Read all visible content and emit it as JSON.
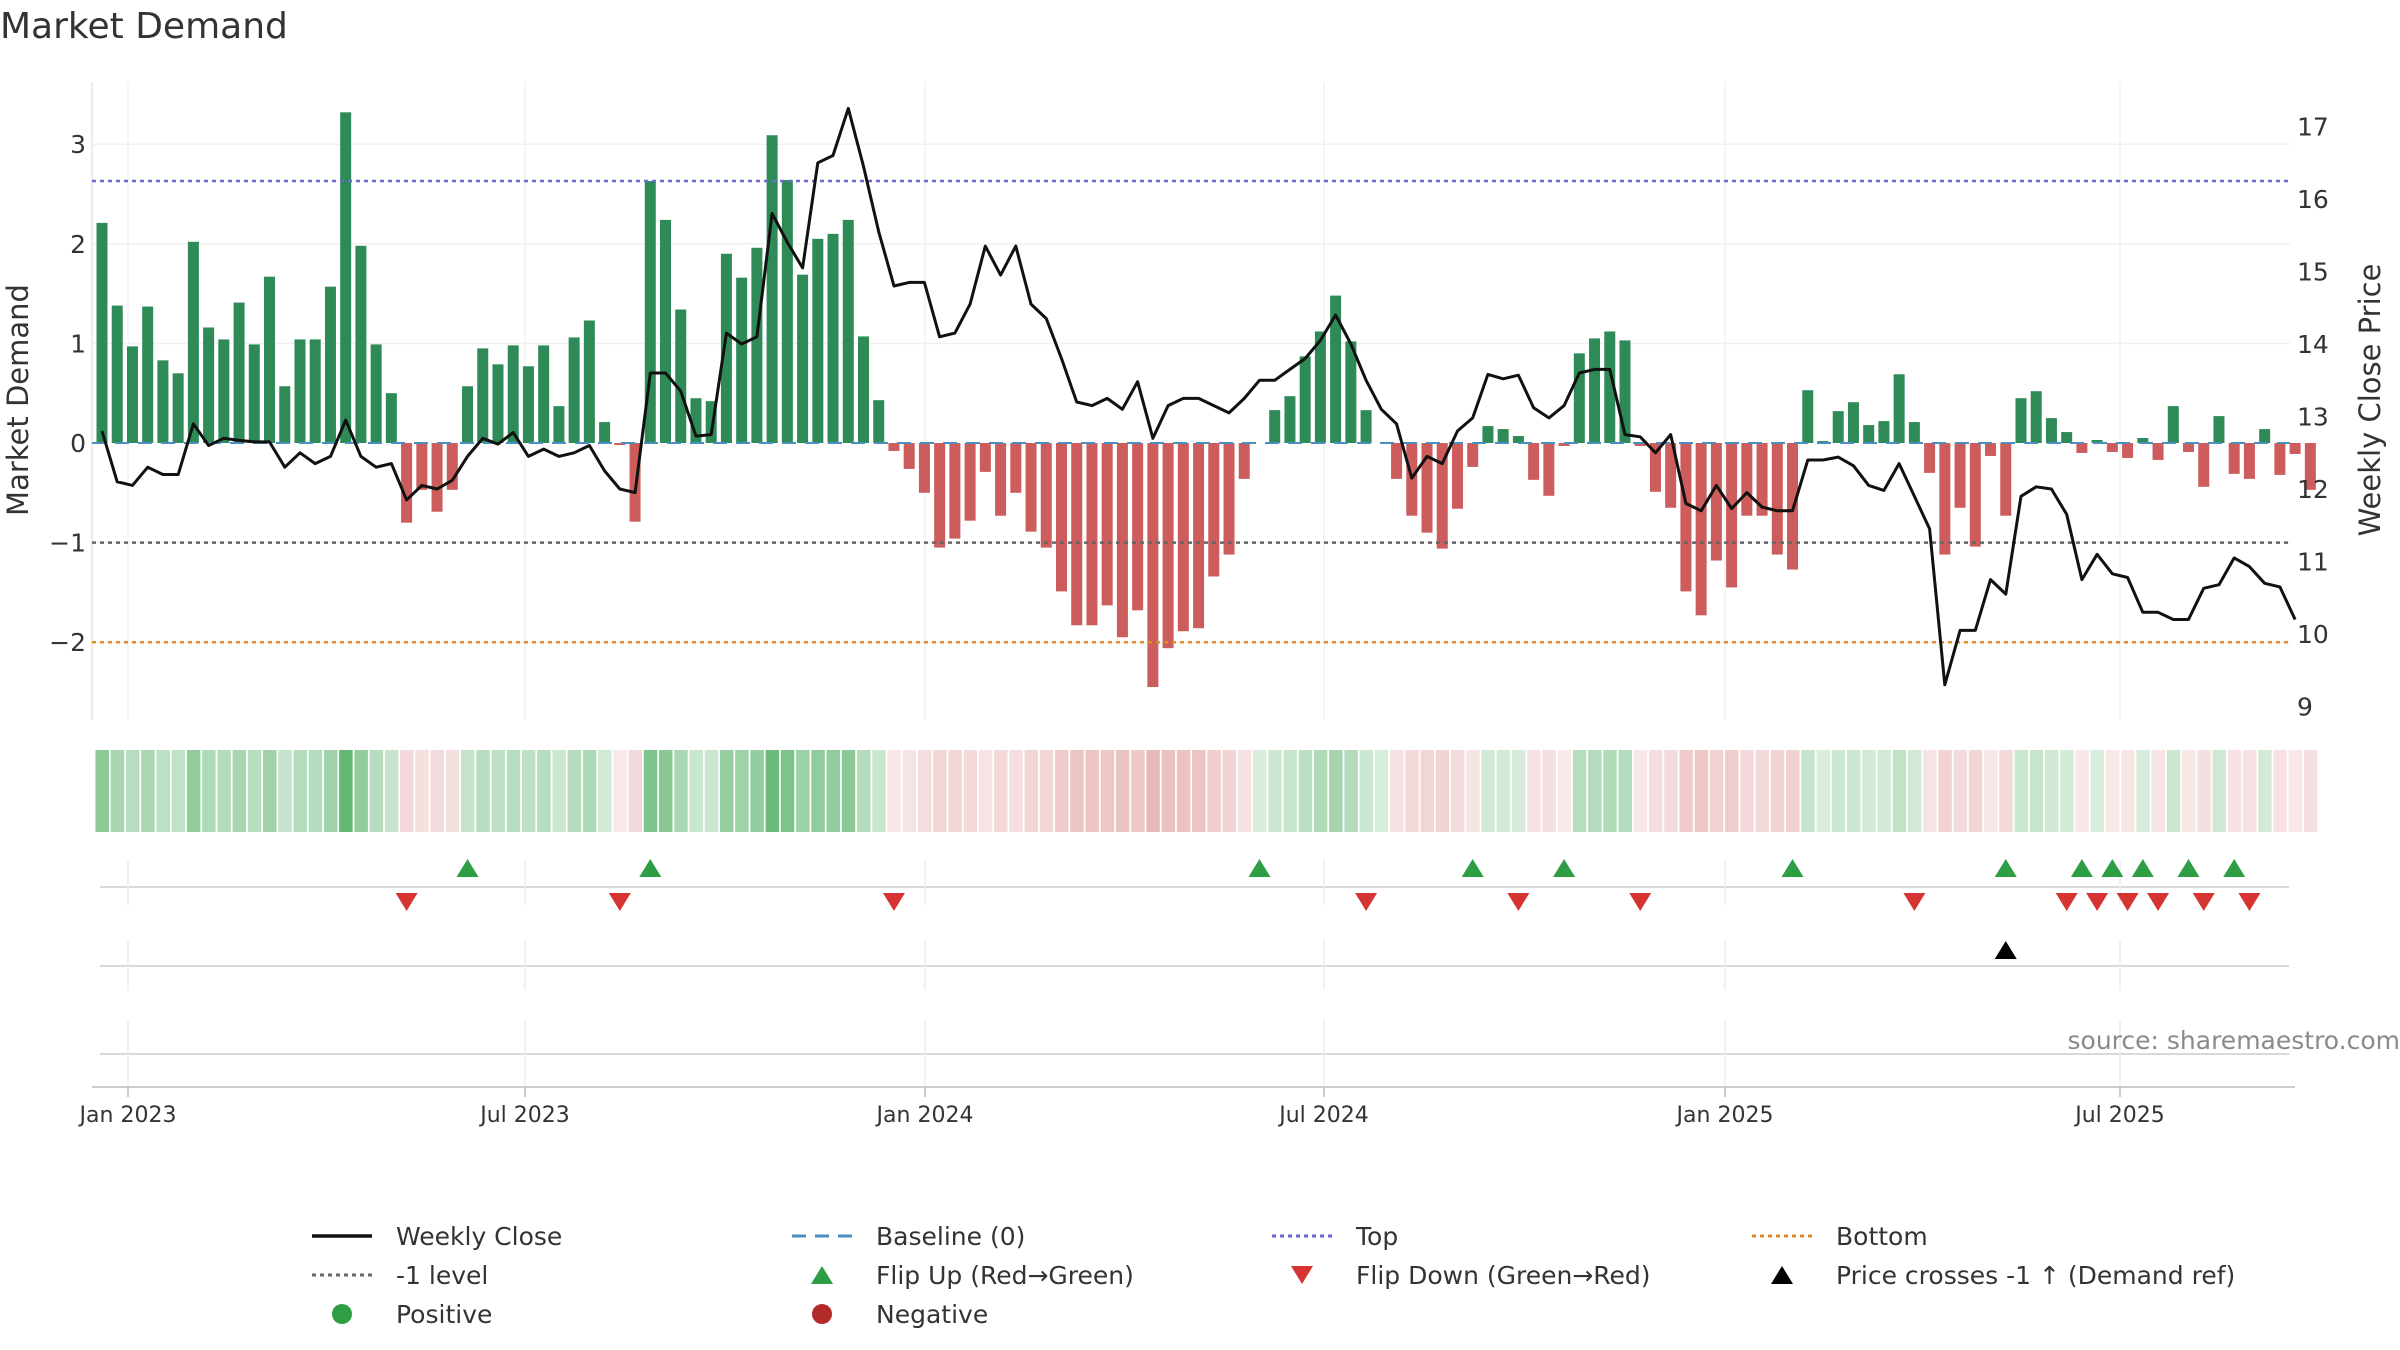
{
  "chart_data": {
    "type": "bar",
    "title": "Market Demand",
    "ylabel_left": "Market Demand",
    "ylabel_right": "Weekly Close Price",
    "yticks_left": [
      "3",
      "2",
      "1",
      "0",
      "−1",
      "−2"
    ],
    "yticks_right": [
      "17",
      "16",
      "15",
      "14",
      "13",
      "12",
      "11",
      "10",
      "9"
    ],
    "ylim_left": [
      -2.7,
      3.5
    ],
    "ylim_right": [
      8.8,
      17.4
    ],
    "x_ticks": [
      "Jan 2023",
      "Jul 2023",
      "Jan 2024",
      "Jul 2024",
      "Jan 2025",
      "Jul 2025"
    ],
    "reference_lines": {
      "top": 2.63,
      "minus_one": -1.0,
      "bottom": -2.0,
      "baseline": 0
    },
    "source": "source: sharemaestro.com",
    "demand": [
      2.21,
      1.38,
      0.97,
      1.37,
      0.83,
      0.7,
      2.02,
      1.16,
      1.04,
      1.41,
      0.99,
      1.67,
      0.57,
      1.04,
      1.04,
      1.57,
      3.32,
      1.98,
      0.99,
      0.5,
      -0.8,
      -0.47,
      -0.69,
      -0.47,
      0.57,
      0.95,
      0.79,
      0.98,
      0.77,
      0.98,
      0.37,
      1.06,
      1.23,
      0.21,
      -0.02,
      -0.79,
      2.63,
      2.24,
      1.34,
      0.45,
      0.42,
      1.9,
      1.66,
      1.96,
      3.09,
      2.64,
      1.69,
      2.05,
      2.1,
      2.24,
      1.07,
      0.43,
      -0.08,
      -0.26,
      -0.5,
      -1.05,
      -0.96,
      -0.78,
      -0.29,
      -0.73,
      -0.5,
      -0.89,
      -1.05,
      -1.49,
      -1.83,
      -1.83,
      -1.63,
      -1.95,
      -1.68,
      -2.45,
      -2.06,
      -1.89,
      -1.86,
      -1.34,
      -1.12,
      -0.36,
      0.0,
      0.33,
      0.47,
      0.87,
      1.12,
      1.48,
      1.02,
      0.33,
      0.0,
      -0.36,
      -0.73,
      -0.9,
      -1.06,
      -0.66,
      -0.24,
      0.17,
      0.14,
      0.07,
      -0.37,
      -0.53,
      -0.03,
      0.9,
      1.05,
      1.12,
      1.03,
      -0.03,
      -0.49,
      -0.65,
      -1.49,
      -1.73,
      -1.18,
      -1.45,
      -0.73,
      -0.73,
      -1.12,
      -1.27,
      0.53,
      0.02,
      0.32,
      0.41,
      0.18,
      0.22,
      0.69,
      0.21,
      -0.3,
      -1.12,
      -0.65,
      -1.04,
      -0.13,
      -0.73,
      0.45,
      0.52,
      0.25,
      0.11,
      -0.1,
      0.03,
      -0.09,
      -0.15,
      0.05,
      -0.17,
      0.37,
      -0.09,
      -0.44,
      0.27,
      -0.31,
      -0.36,
      0.14,
      -0.32,
      -0.11,
      -0.47
    ],
    "weekly_close": [
      12.8,
      12.1,
      12.05,
      12.3,
      12.2,
      12.2,
      12.9,
      12.6,
      12.7,
      12.67,
      12.65,
      12.65,
      12.3,
      12.5,
      12.35,
      12.45,
      12.95,
      12.45,
      12.3,
      12.35,
      11.85,
      12.05,
      12.0,
      12.12,
      12.45,
      12.7,
      12.62,
      12.78,
      12.45,
      12.55,
      12.45,
      12.5,
      12.6,
      12.25,
      12.0,
      11.95,
      13.6,
      13.6,
      13.35,
      12.73,
      12.75,
      14.15,
      14.0,
      14.1,
      15.8,
      15.4,
      15.05,
      16.5,
      16.6,
      17.25,
      16.45,
      15.55,
      14.8,
      14.85,
      14.85,
      14.1,
      14.15,
      14.55,
      15.35,
      14.95,
      15.35,
      14.55,
      14.35,
      13.8,
      13.2,
      13.15,
      13.25,
      13.1,
      13.48,
      12.7,
      13.15,
      13.25,
      13.25,
      13.15,
      13.05,
      13.25,
      13.5,
      13.5,
      13.65,
      13.8,
      14.05,
      14.4,
      14.0,
      13.5,
      13.1,
      12.9,
      12.15,
      12.45,
      12.35,
      12.8,
      12.98,
      13.58,
      13.52,
      13.57,
      13.12,
      12.98,
      13.15,
      13.6,
      13.65,
      13.65,
      12.75,
      12.72,
      12.5,
      12.75,
      11.8,
      11.7,
      12.05,
      11.73,
      11.95,
      11.75,
      11.7,
      11.7,
      12.4,
      12.4,
      12.44,
      12.32,
      12.05,
      11.98,
      12.35,
      11.9,
      11.45,
      9.3,
      10.05,
      10.05,
      10.75,
      10.55,
      11.9,
      12.03,
      12.0,
      11.65,
      10.75,
      11.1,
      10.83,
      10.78,
      10.3,
      10.3,
      10.2,
      10.2,
      10.63,
      10.68,
      11.05,
      10.93,
      10.7,
      10.65,
      10.2
    ],
    "flip_up_index": [
      24,
      36,
      76,
      90,
      96,
      111,
      125,
      130,
      132,
      134,
      137,
      140
    ],
    "flip_down_index": [
      20,
      34,
      52,
      83,
      93,
      101,
      119,
      129,
      131,
      133,
      135,
      138,
      141
    ],
    "cross_up_index": [
      125
    ],
    "legend": [
      {
        "label": "Weekly Close",
        "kind": "line",
        "color": "#111111"
      },
      {
        "label": "Baseline (0)",
        "kind": "dash",
        "color": "#4a8fc2"
      },
      {
        "label": "Top",
        "kind": "dot",
        "color": "#6a6ad2"
      },
      {
        "label": "Bottom",
        "kind": "dot",
        "color": "#e08a2a"
      },
      {
        "label": "-1 level",
        "kind": "dot",
        "color": "#666666"
      },
      {
        "label": "Flip Up (Red→Green)",
        "kind": "tri-up",
        "color": "#2e9e44"
      },
      {
        "label": "Flip Down (Green→Red)",
        "kind": "tri-down",
        "color": "#d63333"
      },
      {
        "label": "Price crosses -1 ↑ (Demand ref)",
        "kind": "tri-up",
        "color": "#000000"
      },
      {
        "label": "Positive",
        "kind": "circle",
        "color": "#2e9e44"
      },
      {
        "label": "Negative",
        "kind": "circle",
        "color": "#b22a2a"
      }
    ],
    "colors": {
      "positive_bar": "#2e8b57",
      "negative_bar": "#cd5c5c",
      "price_line": "#111111",
      "heat_positive": "#2e9e44",
      "heat_negative": "#cc5c5c"
    }
  }
}
